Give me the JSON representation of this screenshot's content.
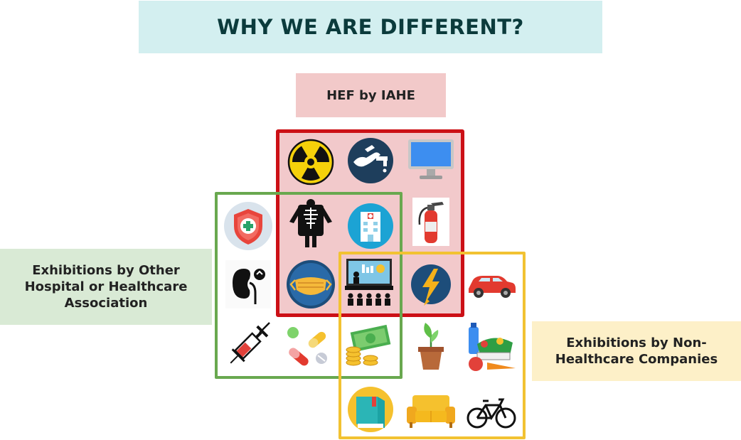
{
  "title": "WHY WE ARE DIFFERENT?",
  "labels": {
    "hef": "HEF by IAHE",
    "other": "Exhibitions by Other Hospital or Healthcare Association",
    "non_healthcare": "Exhibitions by Non-Healthcare Companies"
  },
  "colors": {
    "title_bg": "#d3eff0",
    "hef_border": "#cc1016",
    "hef_fill": "#f2c9cb",
    "other_border": "#69a84f",
    "nonhc_border": "#f2c232"
  },
  "icons": [
    "radiation-icon",
    "plumbing-icon",
    "computer-monitor-icon",
    "health-shield-icon",
    "xray-skeleton-icon",
    "hospital-building-icon",
    "fire-extinguisher-icon",
    "kidney-icon",
    "face-mask-icon",
    "presentation-audience-icon",
    "lightning-icon",
    "car-icon",
    "syringe-icon",
    "pills-icon",
    "money-coins-icon",
    "potted-plant-icon",
    "groceries-icon",
    "book-icon",
    "sofa-icon",
    "bicycle-icon"
  ]
}
